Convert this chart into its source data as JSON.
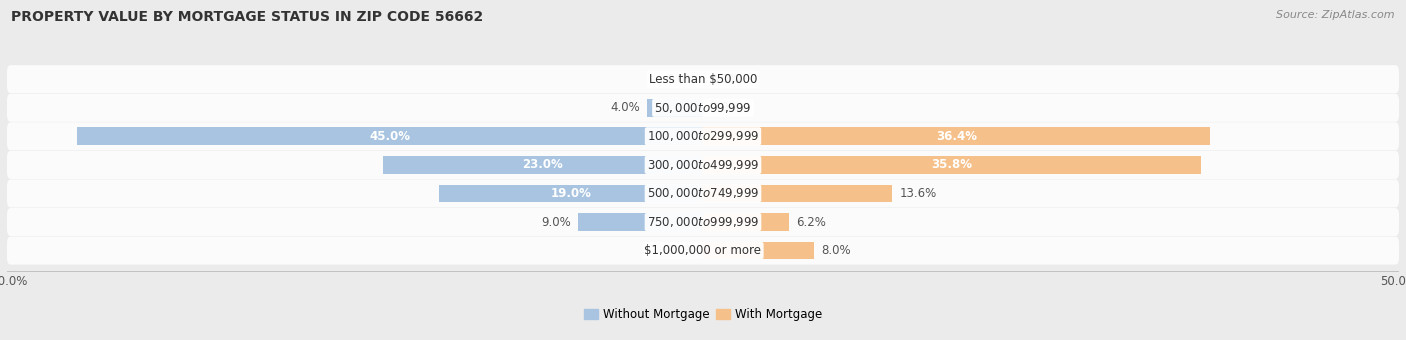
{
  "title": "PROPERTY VALUE BY MORTGAGE STATUS IN ZIP CODE 56662",
  "source": "Source: ZipAtlas.com",
  "categories": [
    "Less than $50,000",
    "$50,000 to $99,999",
    "$100,000 to $299,999",
    "$300,000 to $499,999",
    "$500,000 to $749,999",
    "$750,000 to $999,999",
    "$1,000,000 or more"
  ],
  "without_mortgage": [
    0.0,
    4.0,
    45.0,
    23.0,
    19.0,
    9.0,
    0.0
  ],
  "with_mortgage": [
    0.0,
    0.0,
    36.4,
    35.8,
    13.6,
    6.2,
    8.0
  ],
  "bar_color_without": "#a8c4e0",
  "bar_color_with": "#f5c08a",
  "background_color": "#ebebeb",
  "bar_background_color": "#e0e0e0",
  "xlim_left": -50,
  "xlim_right": 50,
  "legend_without": "Without Mortgage",
  "legend_with": "With Mortgage",
  "title_fontsize": 10,
  "source_fontsize": 8,
  "label_fontsize": 8.5,
  "category_fontsize": 8.5,
  "without_white_threshold": 15,
  "with_white_threshold": 15
}
